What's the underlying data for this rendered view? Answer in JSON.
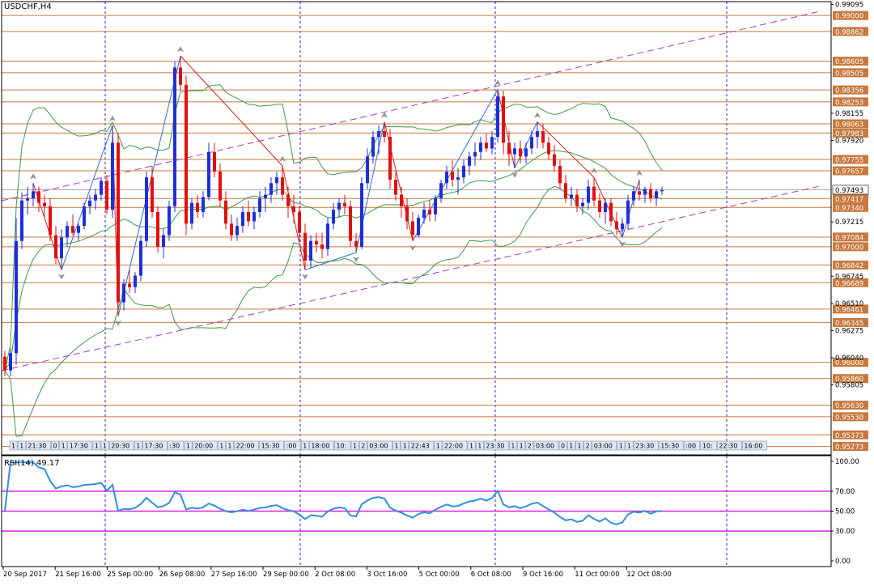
{
  "chart_data": {
    "type": "candlestick",
    "title": "USDCHF,H4",
    "colors": {
      "bull": "#1f2fd8",
      "bear": "#e01010",
      "background": "#ffffff",
      "horizontal_level": "#c8783c",
      "price_label_bg": "#c8783c",
      "channel": "#9b3fbf",
      "bollinger": "#3c9a4a",
      "zigzag_up": "#2b6fd6",
      "zigzag_down": "#d02020",
      "rsi_line": "#2f8fe0",
      "rsi_levels": "#e020e0",
      "session_line": "#2020c8"
    },
    "price_axis": {
      "range": [
        0.9527,
        0.99095
      ],
      "ticks": [
        "0.99095",
        "0.98155",
        "0.97920",
        "0.97215",
        "0.96745",
        "0.96510",
        "0.96275",
        "0.96040",
        "0.95805"
      ],
      "current_price": "0.97493"
    },
    "level_labels": [
      "0.99000",
      "0.98862",
      "0.98605",
      "0.98505",
      "0.98356",
      "0.98253",
      "0.98063",
      "0.97983",
      "0.97755",
      "0.97657",
      "0.97417",
      "0.97340",
      "0.97084",
      "0.97000",
      "0.96842",
      "0.96689",
      "0.96461",
      "0.96345",
      "0.96000",
      "0.95860",
      "0.95630",
      "0.95530",
      "0.95373",
      "0.95273"
    ],
    "x_axis": {
      "labels": [
        "20 Sep 2017",
        "21 Sep 16:00",
        "25 Sep 00:00",
        "26 Sep 08:00",
        "27 Sep 16:00",
        "29 Sep 00:00",
        "2 Oct 08:00",
        "3 Oct 16:00",
        "5 Oct 00:00",
        "6 Oct 08:00",
        "9 Oct 16:00",
        "11 Oct 00:00",
        "12 Oct 08:00"
      ],
      "session_markers": [
        "20 Sep 2017 20:00",
        "25 Sep 00:00",
        "29 Sep 00:00",
        "3 Oct 00:00",
        "6 Oct 08:00",
        "16 Oct 00:00"
      ]
    },
    "event_labels": [
      "1",
      "1",
      "21:30",
      "0",
      "1",
      "17:30",
      "1",
      "1",
      "20:30",
      "1",
      "17:30",
      ":30",
      "1",
      "20:00",
      "1",
      "1",
      "22:00",
      "15:30",
      ":00",
      "1",
      "18:00",
      "10:",
      "1",
      "2",
      "03:00",
      "1",
      "1",
      "22:43",
      "1",
      "22:00",
      "1",
      "1",
      "23:30",
      "1",
      "1",
      "2",
      "03:00",
      "0",
      "1",
      "1",
      "2",
      "03:00",
      "1",
      "1",
      "23:30",
      "15:30",
      ":00",
      "10:",
      "22:30",
      "16:00"
    ],
    "candles": [
      [
        0.9605,
        0.961,
        0.9588,
        0.9593
      ],
      [
        0.9593,
        0.9612,
        0.9588,
        0.9608
      ],
      [
        0.9608,
        0.9725,
        0.9598,
        0.9705
      ],
      [
        0.9705,
        0.9747,
        0.9698,
        0.974
      ],
      [
        0.974,
        0.9752,
        0.9728,
        0.9742
      ],
      [
        0.9742,
        0.9755,
        0.9735,
        0.9748
      ],
      [
        0.9748,
        0.9752,
        0.973,
        0.9738
      ],
      [
        0.9738,
        0.9745,
        0.9725,
        0.9735
      ],
      [
        0.9735,
        0.9742,
        0.9705,
        0.971
      ],
      [
        0.971,
        0.9718,
        0.9685,
        0.969
      ],
      [
        0.969,
        0.9715,
        0.968,
        0.9708
      ],
      [
        0.9708,
        0.9722,
        0.97,
        0.9718
      ],
      [
        0.9718,
        0.9728,
        0.971,
        0.9712
      ],
      [
        0.9712,
        0.972,
        0.9705,
        0.9718
      ],
      [
        0.9718,
        0.9738,
        0.9715,
        0.9735
      ],
      [
        0.9735,
        0.9745,
        0.9728,
        0.974
      ],
      [
        0.974,
        0.975,
        0.9732,
        0.9745
      ],
      [
        0.9745,
        0.976,
        0.974,
        0.9757
      ],
      [
        0.9757,
        0.9762,
        0.9728,
        0.9732
      ],
      [
        0.9732,
        0.9805,
        0.9725,
        0.979
      ],
      [
        0.979,
        0.9798,
        0.964,
        0.9652
      ],
      [
        0.9652,
        0.9672,
        0.9645,
        0.9668
      ],
      [
        0.9668,
        0.968,
        0.966,
        0.9665
      ],
      [
        0.9665,
        0.9678,
        0.966,
        0.9675
      ],
      [
        0.9675,
        0.971,
        0.967,
        0.9705
      ],
      [
        0.9705,
        0.9765,
        0.97,
        0.976
      ],
      [
        0.976,
        0.977,
        0.9725,
        0.973
      ],
      [
        0.973,
        0.9735,
        0.9695,
        0.97
      ],
      [
        0.97,
        0.9715,
        0.969,
        0.971
      ],
      [
        0.971,
        0.974,
        0.9705,
        0.9735
      ],
      [
        0.9735,
        0.986,
        0.973,
        0.9855
      ],
      [
        0.9855,
        0.9865,
        0.9835,
        0.984
      ],
      [
        0.984,
        0.9848,
        0.971,
        0.972
      ],
      [
        0.972,
        0.9742,
        0.9715,
        0.9738
      ],
      [
        0.9738,
        0.9745,
        0.9725,
        0.973
      ],
      [
        0.973,
        0.9748,
        0.9725,
        0.9743
      ],
      [
        0.9743,
        0.979,
        0.974,
        0.9782
      ],
      [
        0.9782,
        0.979,
        0.976,
        0.9765
      ],
      [
        0.9765,
        0.9772,
        0.9735,
        0.974
      ],
      [
        0.974,
        0.9748,
        0.9715,
        0.972
      ],
      [
        0.972,
        0.9728,
        0.9705,
        0.971
      ],
      [
        0.971,
        0.9725,
        0.9705,
        0.9718
      ],
      [
        0.9718,
        0.9735,
        0.9712,
        0.973
      ],
      [
        0.973,
        0.974,
        0.9718,
        0.9722
      ],
      [
        0.9722,
        0.9735,
        0.9715,
        0.973
      ],
      [
        0.973,
        0.9748,
        0.9725,
        0.9742
      ],
      [
        0.9742,
        0.9752,
        0.973,
        0.9745
      ],
      [
        0.9745,
        0.976,
        0.9738,
        0.9755
      ],
      [
        0.9755,
        0.9765,
        0.9745,
        0.976
      ],
      [
        0.976,
        0.977,
        0.974,
        0.9745
      ],
      [
        0.9745,
        0.9752,
        0.9725,
        0.9735
      ],
      [
        0.9735,
        0.9745,
        0.972,
        0.973
      ],
      [
        0.973,
        0.9735,
        0.9705,
        0.9712
      ],
      [
        0.9712,
        0.972,
        0.968,
        0.9688
      ],
      [
        0.9688,
        0.971,
        0.9682,
        0.9705
      ],
      [
        0.9705,
        0.9712,
        0.9695,
        0.9702
      ],
      [
        0.9702,
        0.9712,
        0.969,
        0.9698
      ],
      [
        0.9698,
        0.9725,
        0.9692,
        0.972
      ],
      [
        0.972,
        0.9738,
        0.9715,
        0.9732
      ],
      [
        0.9732,
        0.9742,
        0.9725,
        0.9738
      ],
      [
        0.9738,
        0.9745,
        0.9728,
        0.9735
      ],
      [
        0.9735,
        0.974,
        0.97,
        0.9705
      ],
      [
        0.9705,
        0.9712,
        0.9695,
        0.97
      ],
      [
        0.97,
        0.976,
        0.9698,
        0.9755
      ],
      [
        0.9755,
        0.9785,
        0.975,
        0.9778
      ],
      [
        0.9778,
        0.98,
        0.9772,
        0.9795
      ],
      [
        0.9795,
        0.9805,
        0.978,
        0.98
      ],
      [
        0.98,
        0.9808,
        0.979,
        0.9795
      ],
      [
        0.9795,
        0.9802,
        0.975,
        0.9758
      ],
      [
        0.9758,
        0.9765,
        0.974,
        0.9745
      ],
      [
        0.9745,
        0.9752,
        0.9725,
        0.9735
      ],
      [
        0.9735,
        0.9742,
        0.9715,
        0.9722
      ],
      [
        0.9722,
        0.973,
        0.9705,
        0.971
      ],
      [
        0.971,
        0.9728,
        0.9708,
        0.9725
      ],
      [
        0.9725,
        0.9738,
        0.972,
        0.9732
      ],
      [
        0.9732,
        0.974,
        0.9722,
        0.9728
      ],
      [
        0.9728,
        0.9745,
        0.9722,
        0.9742
      ],
      [
        0.9742,
        0.9758,
        0.9738,
        0.9755
      ],
      [
        0.9755,
        0.977,
        0.975,
        0.9765
      ],
      [
        0.9765,
        0.9775,
        0.9752,
        0.9758
      ],
      [
        0.9758,
        0.9768,
        0.9745,
        0.976
      ],
      [
        0.976,
        0.9775,
        0.9755,
        0.977
      ],
      [
        0.977,
        0.9782,
        0.9762,
        0.9778
      ],
      [
        0.9778,
        0.979,
        0.977,
        0.9782
      ],
      [
        0.9782,
        0.9795,
        0.9775,
        0.979
      ],
      [
        0.979,
        0.9798,
        0.9782,
        0.9785
      ],
      [
        0.9785,
        0.98,
        0.978,
        0.9795
      ],
      [
        0.9795,
        0.9836,
        0.979,
        0.983
      ],
      [
        0.983,
        0.9835,
        0.978,
        0.979
      ],
      [
        0.979,
        0.98,
        0.977,
        0.978
      ],
      [
        0.978,
        0.979,
        0.9768,
        0.9785
      ],
      [
        0.9785,
        0.9792,
        0.9772,
        0.9778
      ],
      [
        0.9778,
        0.979,
        0.9772,
        0.9785
      ],
      [
        0.9785,
        0.98,
        0.978,
        0.9795
      ],
      [
        0.9795,
        0.9808,
        0.9785,
        0.98
      ],
      [
        0.98,
        0.9806,
        0.9785,
        0.979
      ],
      [
        0.979,
        0.9795,
        0.9775,
        0.978
      ],
      [
        0.978,
        0.9788,
        0.9765,
        0.977
      ],
      [
        0.977,
        0.9775,
        0.975,
        0.9755
      ],
      [
        0.9755,
        0.9762,
        0.9738,
        0.9742
      ],
      [
        0.9742,
        0.9752,
        0.9735,
        0.9745
      ],
      [
        0.9745,
        0.975,
        0.973,
        0.9735
      ],
      [
        0.9735,
        0.9742,
        0.9728,
        0.9738
      ],
      [
        0.9738,
        0.9758,
        0.9732,
        0.9752
      ],
      [
        0.9752,
        0.976,
        0.9735,
        0.974
      ],
      [
        0.974,
        0.9746,
        0.9725,
        0.973
      ],
      [
        0.973,
        0.9742,
        0.972,
        0.9738
      ],
      [
        0.9738,
        0.9742,
        0.9718,
        0.9722
      ],
      [
        0.9722,
        0.973,
        0.971,
        0.9715
      ],
      [
        0.9715,
        0.9725,
        0.9708,
        0.972
      ],
      [
        0.972,
        0.9745,
        0.9715,
        0.974
      ],
      [
        0.974,
        0.9752,
        0.9735,
        0.9748
      ],
      [
        0.9748,
        0.9758,
        0.974,
        0.9745
      ],
      [
        0.9745,
        0.9752,
        0.9738,
        0.975
      ],
      [
        0.975,
        0.9755,
        0.9738,
        0.9742
      ],
      [
        0.9742,
        0.975,
        0.9735,
        0.9748
      ],
      [
        0.9748,
        0.9752,
        0.9745,
        0.9749
      ]
    ],
    "rsi": {
      "label": "RSI(14) 49.17",
      "range": [
        0,
        100
      ],
      "ticks": [
        "100.00",
        "70.00",
        "50.00",
        "30.00",
        "0.00"
      ],
      "levels": [
        70,
        50,
        30
      ]
    }
  }
}
